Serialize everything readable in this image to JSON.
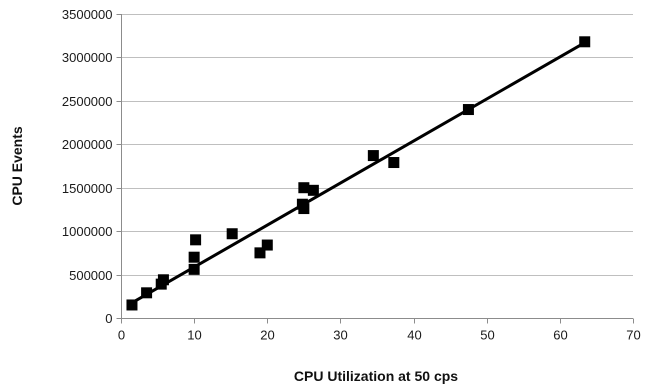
{
  "chart_data": {
    "type": "scatter",
    "title": "",
    "xlabel": "CPU Utilization  at 50 cps",
    "ylabel": "CPU Events",
    "xlim": [
      0,
      70
    ],
    "ylim": [
      0,
      3500000
    ],
    "x_ticks": [
      0,
      10,
      20,
      30,
      40,
      50,
      60,
      70
    ],
    "y_ticks": [
      0,
      500000,
      1000000,
      1500000,
      2000000,
      2500000,
      3000000,
      3500000
    ],
    "grid": {
      "horizontal": true,
      "vertical": false
    },
    "legend": "none",
    "colors": {
      "marker": "#000000",
      "trendline": "#000000",
      "grid": "#bfbfbf",
      "axis": "#8c8c8c"
    },
    "series": [
      {
        "marker": "square",
        "points": [
          {
            "x": 1.5,
            "y": 150000
          },
          {
            "x": 3.5,
            "y": 290000
          },
          {
            "x": 5.5,
            "y": 390000
          },
          {
            "x": 5.8,
            "y": 440000
          },
          {
            "x": 10,
            "y": 560000
          },
          {
            "x": 10,
            "y": 700000
          },
          {
            "x": 10.2,
            "y": 900000
          },
          {
            "x": 15.2,
            "y": 970000
          },
          {
            "x": 19.0,
            "y": 750000
          },
          {
            "x": 20.0,
            "y": 840000
          },
          {
            "x": 24.8,
            "y": 1310000
          },
          {
            "x": 25.0,
            "y": 1260000
          },
          {
            "x": 25.0,
            "y": 1500000
          },
          {
            "x": 26.3,
            "y": 1470000
          },
          {
            "x": 34.5,
            "y": 1870000
          },
          {
            "x": 37.3,
            "y": 1790000
          },
          {
            "x": 47.5,
            "y": 2400000
          },
          {
            "x": 63.4,
            "y": 3180000
          }
        ]
      }
    ],
    "trendline": {
      "type": "linear",
      "x_start": 1.2,
      "y_start": 160000,
      "x_end": 63.4,
      "y_end": 3170000
    }
  }
}
